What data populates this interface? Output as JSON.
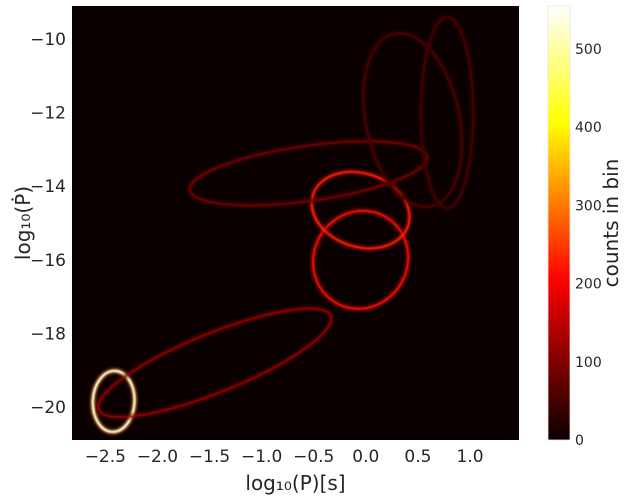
{
  "chart_data": {
    "type": "heatmap",
    "title": "",
    "xlabel": "log₁₀(P)[s]",
    "ylabel": "log₁₀(Ṗ)",
    "xlim": [
      -2.82,
      1.47
    ],
    "ylim": [
      -20.9,
      -9.1
    ],
    "xticks": [
      -2.5,
      -2.0,
      -1.5,
      -1.0,
      -0.5,
      0.0,
      0.5,
      1.0
    ],
    "xtick_labels": [
      "−2.5",
      "−2.0",
      "−1.5",
      "−1.0",
      "−0.5",
      "0.0",
      "0.5",
      "1.0"
    ],
    "yticks": [
      -10,
      -12,
      -14,
      -16,
      -18,
      -20
    ],
    "ytick_labels": [
      "−10",
      "−12",
      "−14",
      "−16",
      "−18",
      "−20"
    ],
    "grid": false,
    "colormap": "hot",
    "background_color": "#0a0000",
    "colorbar": {
      "label": "counts in bin",
      "range": [
        0,
        555
      ],
      "ticks": [
        0,
        100,
        200,
        300,
        400,
        500
      ],
      "tick_labels": [
        "0",
        "100",
        "200",
        "300",
        "400",
        "500"
      ]
    },
    "rings": [
      {
        "cx": -2.42,
        "cy": -19.85,
        "rx": 0.2,
        "ry": 0.83,
        "rot": 3,
        "intensity": 520
      },
      {
        "cx": -1.45,
        "cy": -18.8,
        "rx": 1.2,
        "ry": 0.8,
        "rot": -22,
        "intensity": 110
      },
      {
        "cx": -0.05,
        "cy": -16.0,
        "rx": 0.45,
        "ry": 1.35,
        "rot": 30,
        "intensity": 210
      },
      {
        "cx": -0.05,
        "cy": -14.65,
        "rx": 0.48,
        "ry": 1.0,
        "rot": 18,
        "intensity": 230
      },
      {
        "cx": -0.55,
        "cy": -13.65,
        "rx": 1.15,
        "ry": 0.75,
        "rot": -8,
        "intensity": 85
      },
      {
        "cx": 0.45,
        "cy": -12.2,
        "rx": 0.45,
        "ry": 2.4,
        "rot": -12,
        "intensity": 55
      },
      {
        "cx": 0.78,
        "cy": -12.0,
        "rx": 0.25,
        "ry": 2.6,
        "rot": 0,
        "intensity": 50
      }
    ]
  }
}
